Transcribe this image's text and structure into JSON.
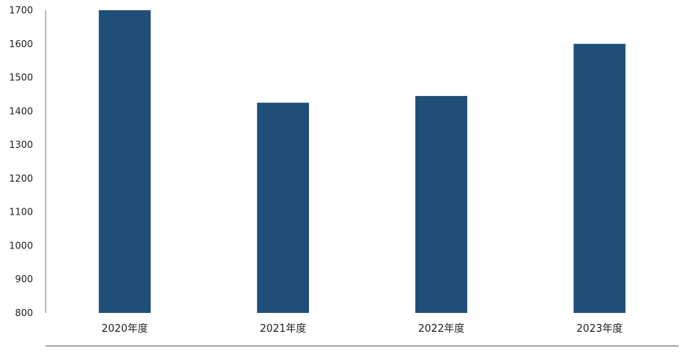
{
  "chart_data": {
    "type": "bar",
    "title": "",
    "xlabel": "",
    "ylabel": "",
    "categories": [
      "2020年度",
      "2021年度",
      "2022年度",
      "2023年度"
    ],
    "values": [
      1700,
      1425,
      1445,
      1600
    ],
    "ylim": [
      800,
      1700
    ],
    "yticks": [
      800,
      900,
      1000,
      1100,
      1200,
      1300,
      1400,
      1500,
      1600,
      1700
    ],
    "grid": false,
    "legend": "none",
    "bar_color": "#1f4e79",
    "axis_color": "#b4c0cc",
    "text_color": "#222222"
  }
}
